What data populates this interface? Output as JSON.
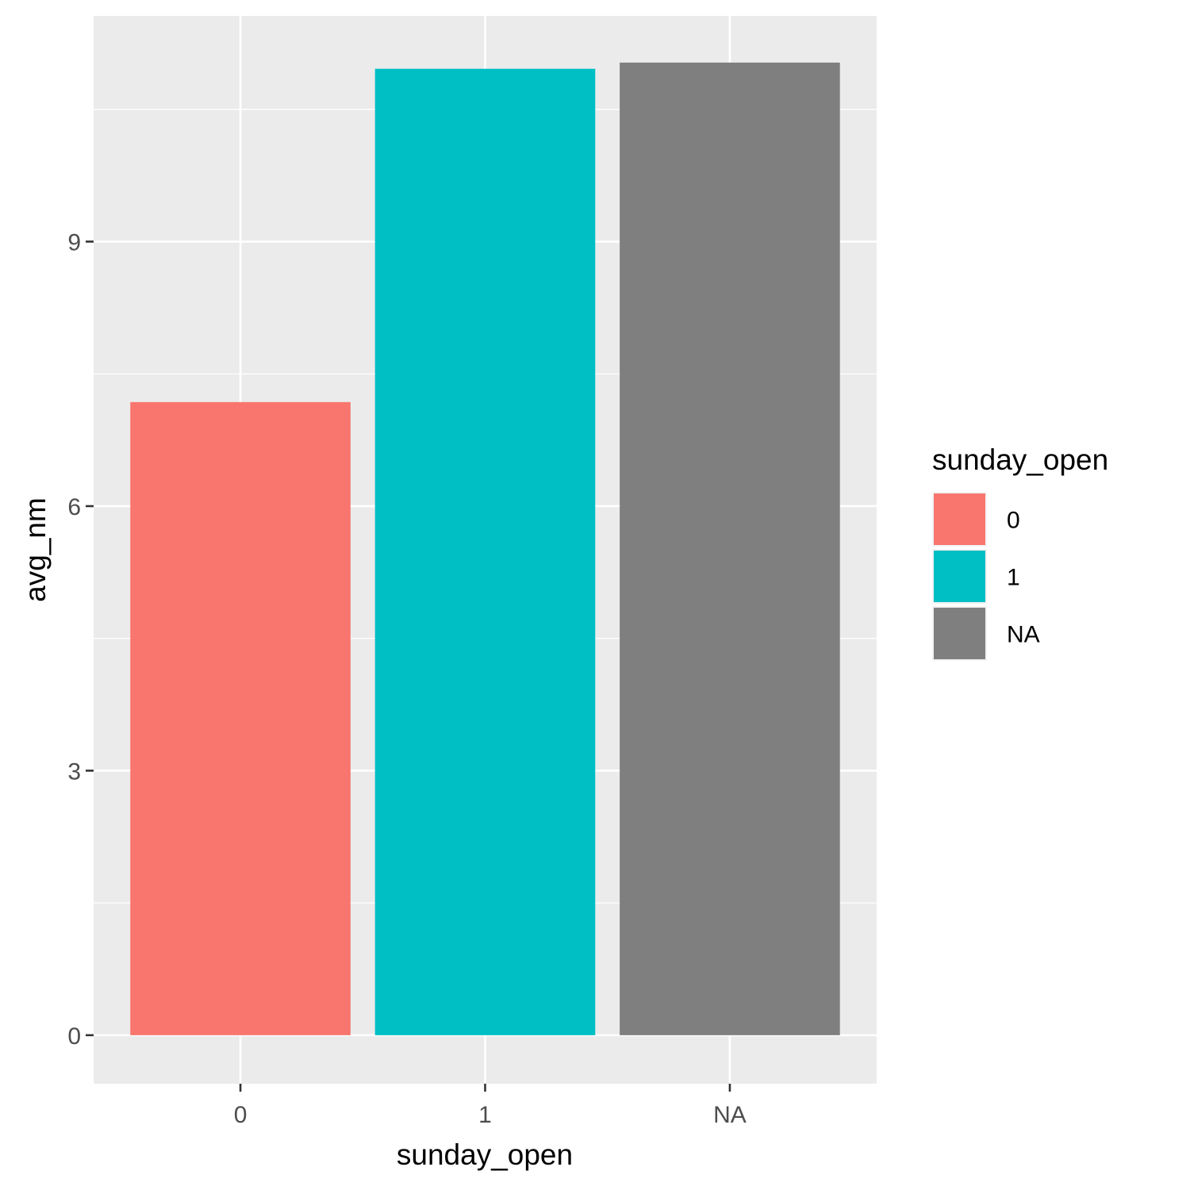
{
  "chart_data": {
    "type": "bar",
    "categories": [
      "0",
      "1",
      "NA"
    ],
    "values": [
      7.18,
      10.96,
      11.03
    ],
    "fill_colors": [
      "#F8766D",
      "#00BFC4",
      "#7F7F7F"
    ],
    "xlabel": "sunday_open",
    "ylabel": "avg_nm",
    "ylim": [
      -0.55,
      11.56
    ],
    "yticks": [
      0,
      3,
      6,
      9
    ],
    "ytick_labels": [
      "0",
      "3",
      "6",
      "9"
    ],
    "grid": true,
    "panel_background": "#EBEBEB",
    "grid_color": "#FFFFFF",
    "legend": {
      "title": "sunday_open",
      "position": "right",
      "entries": [
        {
          "label": "0",
          "color": "#F8766D"
        },
        {
          "label": "1",
          "color": "#00BFC4"
        },
        {
          "label": "NA",
          "color": "#7F7F7F"
        }
      ]
    }
  }
}
